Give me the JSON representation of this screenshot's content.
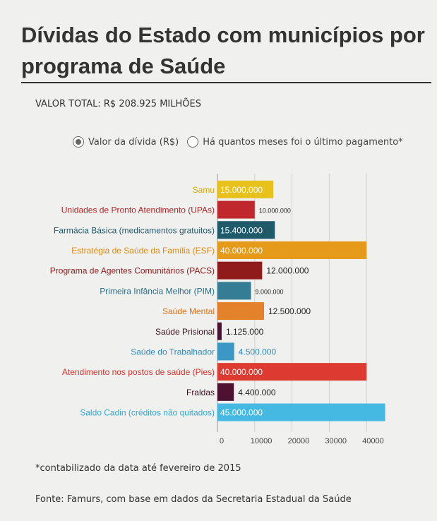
{
  "header": {
    "title": "Dívidas do Estado com municípios por programa de Saúde",
    "total": "VALOR TOTAL: R$ 208.925 MILHÕES"
  },
  "controls": {
    "options": [
      {
        "label": "Valor da dívida (R$)",
        "selected": true
      },
      {
        "label": "Há quantos meses foi o último pagamento*",
        "selected": false
      }
    ]
  },
  "chart_data": {
    "type": "bar",
    "orientation": "horizontal",
    "categories": [
      "Samu",
      "Unidades de Pronto Atendimento (UPAs)",
      "Farmácia Básica (medicamentos gratuitos)",
      "Estratégia de Saúde da Família (ESF)",
      "Programa de Agentes Comunitários (PACS)",
      "Primeira Infância Melhor (PIM)",
      "Saúde Mental",
      "Saúde Prisional",
      "Saúde do Trabalhador",
      "Atendimento nos postos de saúde (Pies)",
      "Fraldas",
      "Saldo Cadin (créditos não quitados)"
    ],
    "values": [
      15000000,
      10000000,
      15400000,
      40000000,
      12000000,
      9000000,
      12500000,
      1125000,
      4500000,
      40000000,
      4400000,
      45000000
    ],
    "value_labels": [
      "15.000.000",
      "10.000.000",
      "15.400.000",
      "40.000.000",
      "12.000.000",
      "9.000.000",
      "12.500.000",
      "1.125.000",
      "4.500.000",
      "40.000.000",
      "4.400.000",
      "45.000.000"
    ],
    "colors": [
      "#e8c11c",
      "#c0282e",
      "#1f5a6b",
      "#e59a1a",
      "#8f1b1b",
      "#357d94",
      "#e3822a",
      "#4d1230",
      "#3b98c5",
      "#dd3b32",
      "#4d1230",
      "#45b9e1"
    ],
    "label_colors": [
      "#d4a50b",
      "#b42328",
      "#1f5a6b",
      "#e08a10",
      "#8f1b1b",
      "#2e6f85",
      "#e3701a",
      "#3a1022",
      "#2f8ab8",
      "#d93128",
      "#3a1022",
      "#35a7d6"
    ],
    "xticks": [
      0,
      10000,
      20000,
      30000,
      40000
    ],
    "xtick_labels": [
      "0",
      "10000",
      "20000",
      "30000",
      "40000"
    ],
    "xlim": [
      0,
      45000
    ]
  },
  "footer": {
    "note": "*contabilizado da data até fevereiro de 2015",
    "source": "Fonte: Famurs, com base em dados da Secretaria Estadual da Saúde"
  }
}
